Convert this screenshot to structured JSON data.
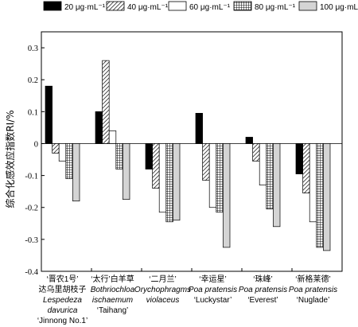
{
  "chart_data": {
    "type": "bar",
    "ylabel": "综合化感效应指数RI/%",
    "ylim": [
      -0.4,
      0.35
    ],
    "yticks": [
      -0.4,
      -0.3,
      -0.2,
      -0.1,
      0,
      0.1,
      0.2,
      0.3
    ],
    "ytick_labels": [
      "-0.4",
      "-0.3",
      "-0.2",
      "-0.1",
      "0",
      "0.1",
      "0.2",
      "0.3"
    ],
    "legend_position": "top",
    "series": [
      {
        "name": "20 μg·mL⁻¹",
        "pattern": "solid-black",
        "values": [
          0.18,
          0.1,
          -0.08,
          0.095,
          0.02,
          -0.095
        ]
      },
      {
        "name": "40 μg·mL⁻¹",
        "pattern": "diagonal-hatch",
        "values": [
          -0.03,
          0.26,
          -0.14,
          -0.115,
          -0.055,
          -0.155
        ]
      },
      {
        "name": "60 μg·mL⁻¹",
        "pattern": "white",
        "values": [
          -0.055,
          0.04,
          -0.215,
          -0.2,
          -0.13,
          -0.245
        ]
      },
      {
        "name": "80 μg·mL⁻¹",
        "pattern": "grid-hatch",
        "values": [
          -0.11,
          -0.08,
          -0.245,
          -0.215,
          -0.205,
          -0.325
        ]
      },
      {
        "name": "100 μg·mL⁻¹",
        "pattern": "light-gray",
        "values": [
          -0.18,
          -0.175,
          -0.24,
          -0.325,
          -0.26,
          -0.335
        ]
      }
    ],
    "categories": [
      {
        "lines": [
          "‘晋农1号’",
          "达乌里胡枝子",
          "Lespedeza",
          "davurica",
          "‘Jinnong No.1’"
        ],
        "italic": [
          false,
          false,
          true,
          true,
          false
        ]
      },
      {
        "lines": [
          "‘太行’白羊草",
          "Bothriochloa",
          "ischaemum",
          "‘Taihang’"
        ],
        "italic": [
          false,
          true,
          true,
          false
        ]
      },
      {
        "lines": [
          "‘二月兰’",
          "Orychophragms",
          "violaceus"
        ],
        "italic": [
          false,
          true,
          true
        ]
      },
      {
        "lines": [
          "‘幸运星’",
          "Poa pratensis",
          "‘Luckystar’"
        ],
        "italic": [
          false,
          true,
          false
        ]
      },
      {
        "lines": [
          "‘珠峰’",
          "Poa pratensis",
          "‘Everest’"
        ],
        "italic": [
          false,
          true,
          false
        ]
      },
      {
        "lines": [
          "‘新格莱德’",
          "Poa pratensis",
          "‘Nuglade’"
        ],
        "italic": [
          false,
          true,
          false
        ]
      }
    ]
  }
}
